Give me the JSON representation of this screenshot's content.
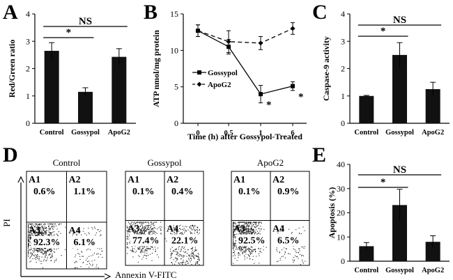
{
  "panels": {
    "A": "A",
    "B": "B",
    "C": "C",
    "D": "D",
    "E": "E"
  },
  "significance": {
    "star": "*",
    "ns": "NS"
  },
  "colors": {
    "bar": "#111111",
    "axis": "#000000",
    "dots": "#111111"
  },
  "chart_data": [
    {
      "id": "A",
      "type": "bar",
      "categories": [
        "Control",
        "Gossypol",
        "ApoG2"
      ],
      "values": [
        2.65,
        1.15,
        2.43
      ],
      "errors": [
        0.3,
        0.15,
        0.3
      ],
      "ylabel": "Red/Green ratio",
      "ylim": [
        0,
        4
      ],
      "yticks": [
        "0",
        "1",
        "2",
        "3",
        "4"
      ],
      "comparisons": [
        {
          "from": 0,
          "to": 1,
          "label": "*"
        },
        {
          "from": 0,
          "to": 2,
          "label": "NS"
        }
      ]
    },
    {
      "id": "B",
      "type": "line",
      "categories": [
        "0",
        "0.5",
        "1",
        "6"
      ],
      "xlabel": "Time (h) after Gossypol-Treated",
      "ylabel": "ATP nmol/mg protein",
      "ylim": [
        0,
        15
      ],
      "yticks": [
        "0",
        "5",
        "10",
        "15"
      ],
      "series": [
        {
          "name": "Gossypol",
          "values": [
            12.7,
            10.5,
            4.0,
            5.1
          ],
          "errors": [
            0.8,
            1.0,
            1.2,
            0.6
          ],
          "marker": "square",
          "dash": false
        },
        {
          "name": "ApoG2",
          "values": [
            12.7,
            11.2,
            11.0,
            13.0
          ],
          "errors": [
            0.8,
            1.5,
            0.9,
            0.8
          ],
          "marker": "diamond",
          "dash": true
        }
      ],
      "annotations": [
        {
          "index": 2,
          "label": "*"
        },
        {
          "index": 3,
          "label": "*"
        }
      ]
    },
    {
      "id": "C",
      "type": "bar",
      "categories": [
        "Control",
        "Gossypol",
        "ApoG2"
      ],
      "values": [
        1.0,
        2.5,
        1.25
      ],
      "errors": [
        0.02,
        0.45,
        0.25
      ],
      "ylabel": "Caspase-9 activity",
      "ylim": [
        0,
        4
      ],
      "yticks": [
        "0",
        "1",
        "2",
        "3",
        "4"
      ],
      "comparisons": [
        {
          "from": 0,
          "to": 1,
          "label": "*"
        },
        {
          "from": 0,
          "to": 2,
          "label": "NS"
        }
      ]
    },
    {
      "id": "E",
      "type": "bar",
      "categories": [
        "Control",
        "Gossypol",
        "ApoG2"
      ],
      "values": [
        6.2,
        23.2,
        8.0
      ],
      "errors": [
        1.5,
        6.5,
        2.5
      ],
      "ylabel": "Apoptosis (%)",
      "ylim": [
        0,
        40
      ],
      "yticks": [
        "0",
        "10",
        "20",
        "30",
        "40"
      ],
      "comparisons": [
        {
          "from": 0,
          "to": 1,
          "label": "*"
        },
        {
          "from": 0,
          "to": 2,
          "label": "NS"
        }
      ]
    }
  ],
  "facs": {
    "xlabel": "Annexin V-FITC",
    "ylabel": "PI",
    "plots": [
      {
        "title": "Control",
        "quadrants": {
          "A1": "0.6%",
          "A2": "1.1%",
          "A3": "92.3%",
          "A4": "6.1%"
        }
      },
      {
        "title": "Gossypol",
        "quadrants": {
          "A1": "0.1%",
          "A2": "0.4%",
          "A3": "77.4%",
          "A4": "22.1%"
        }
      },
      {
        "title": "ApoG2",
        "quadrants": {
          "A1": "0.1%",
          "A2": "0.9%",
          "A3": "92.5%",
          "A4": "6.5%"
        }
      }
    ]
  }
}
